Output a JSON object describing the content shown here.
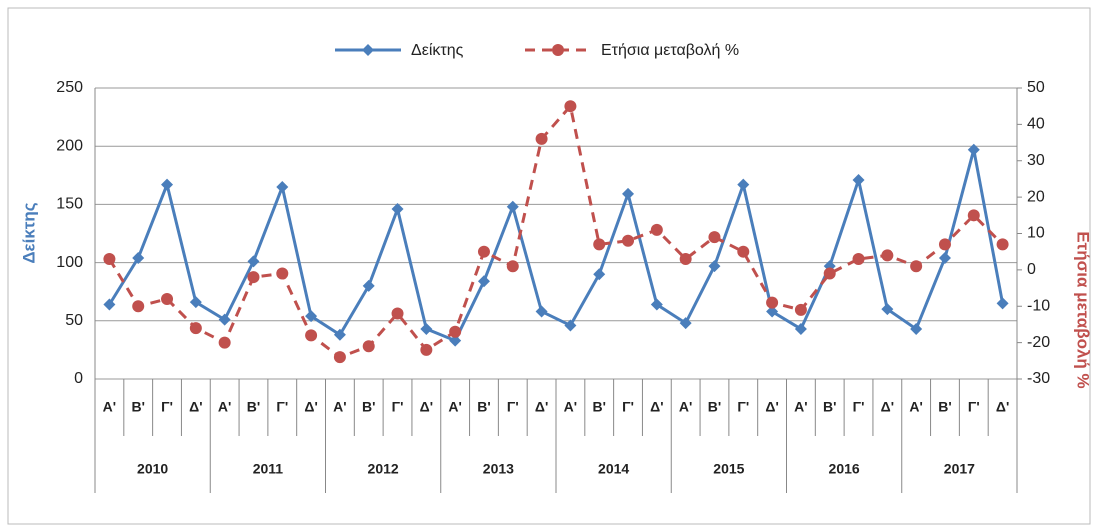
{
  "chart_data": {
    "type": "line",
    "categories": [
      "Α'",
      "Β'",
      "Γ'",
      "Δ'",
      "Α'",
      "Β'",
      "Γ'",
      "Δ'",
      "Α'",
      "Β'",
      "Γ'",
      "Δ'",
      "Α'",
      "Β'",
      "Γ'",
      "Δ'",
      "Α'",
      "Β'",
      "Γ'",
      "Δ'",
      "Α'",
      "Β'",
      "Γ'",
      "Δ'",
      "Α'",
      "Β'",
      "Γ'",
      "Δ'",
      "Α'",
      "Β'",
      "Γ'",
      "Δ'"
    ],
    "category_groups": [
      "2010",
      "2011",
      "2012",
      "2013",
      "2014",
      "2015",
      "2016",
      "2017"
    ],
    "y_label": "Δείκτης",
    "y2_label": "Ετήσια μεταβολή %",
    "ylim": [
      0,
      250
    ],
    "yticks": [
      0,
      50,
      100,
      150,
      200,
      250
    ],
    "y2lim": [
      -30,
      50
    ],
    "y2ticks": [
      -30,
      -20,
      -10,
      0,
      10,
      20,
      30,
      40,
      50
    ],
    "grid": true,
    "series": [
      {
        "name": "Δείκτης",
        "color": "#4a7ebb",
        "values": [
          64,
          104,
          167,
          66,
          51,
          101,
          165,
          54,
          38,
          80,
          146,
          43,
          33,
          84,
          148,
          58,
          46,
          90,
          159,
          64,
          48,
          97,
          167,
          58,
          43,
          97,
          171,
          60,
          43,
          104,
          197,
          65
        ]
      },
      {
        "name": "Ετήσια μεταβολή %",
        "color": "#c0504d",
        "axis": "y2",
        "values": [
          3,
          -10,
          -8,
          -16,
          -20,
          -2,
          -1,
          -18,
          -24,
          -21,
          -12,
          -22,
          -17,
          5,
          1,
          36,
          45,
          7,
          8,
          11,
          3,
          9,
          5,
          -9,
          -11,
          -1,
          3,
          4,
          1,
          7,
          15,
          7
        ]
      }
    ]
  }
}
